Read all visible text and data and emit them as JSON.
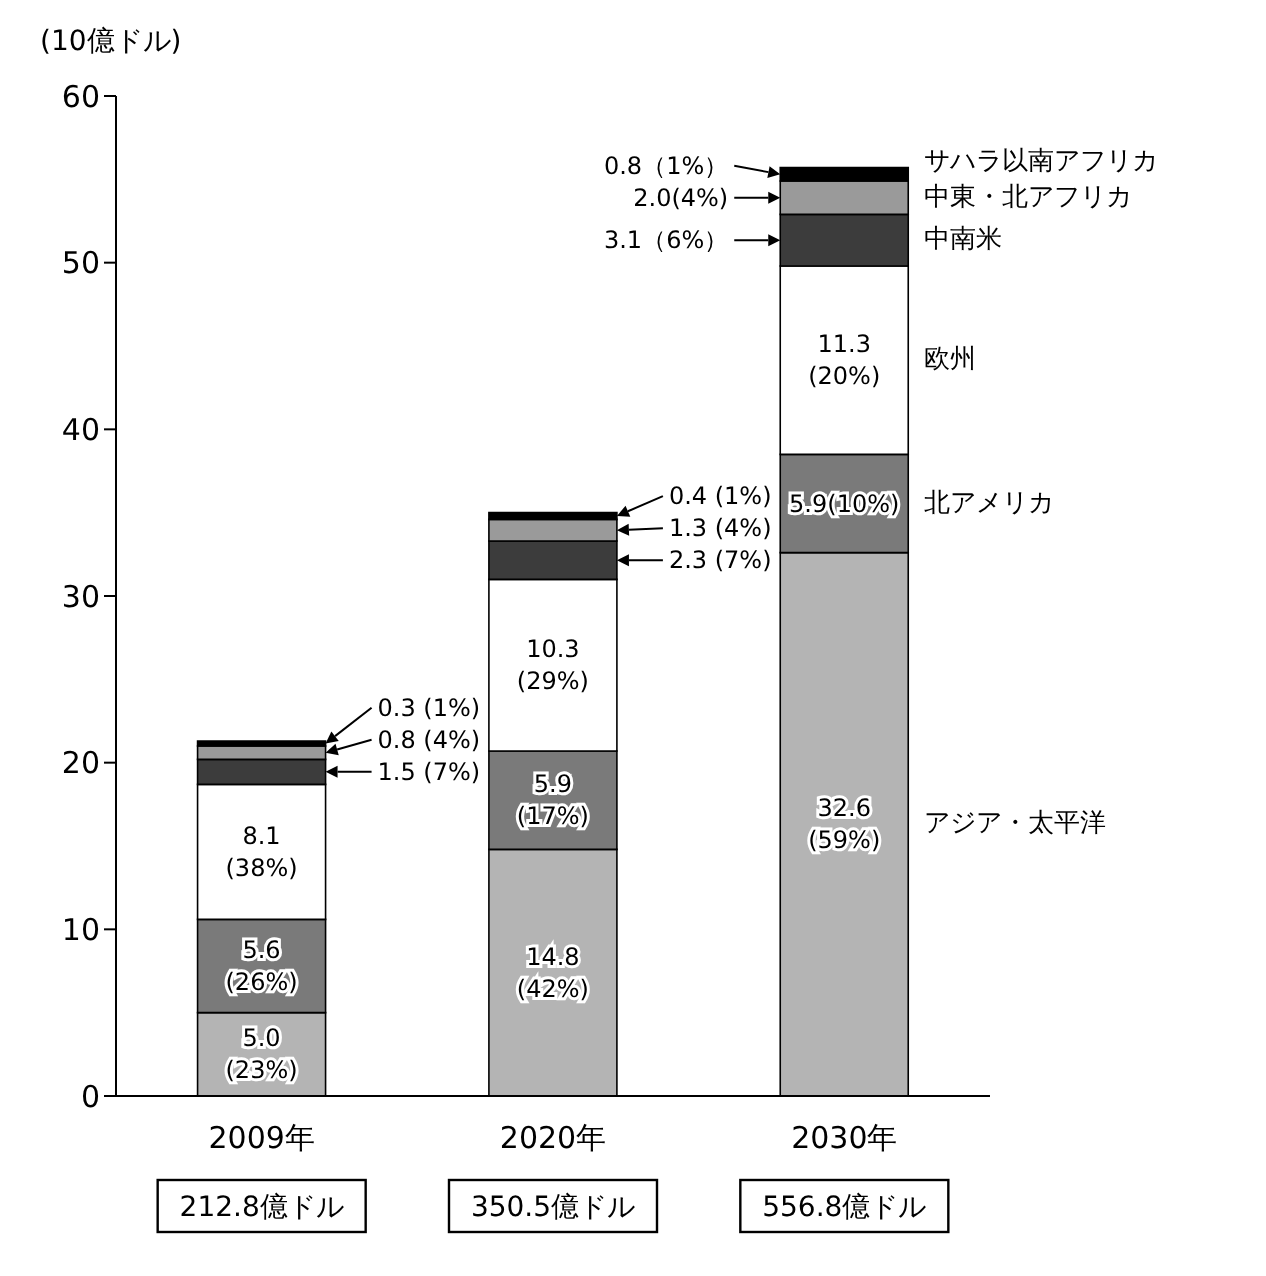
{
  "chart_data": {
    "type": "bar",
    "stacked": true,
    "ylabel": "(10億ドル)",
    "categories": [
      "2009年",
      "2020年",
      "2030年"
    ],
    "ylim": [
      0,
      60
    ],
    "yticks": [
      0,
      10,
      20,
      30,
      40,
      50,
      60
    ],
    "grid": false,
    "legend": false,
    "annotations": [
      "212.8億ドル",
      "350.5億ドル",
      "556.8億ドル"
    ],
    "series": [
      {
        "name": "アジア・太平洋",
        "color": "#b4b4b4",
        "values": [
          5.0,
          14.8,
          32.6
        ],
        "value_labels": [
          "5.0 (23%)",
          "14.8 (42%)",
          "32.6 (59%)"
        ]
      },
      {
        "name": "北アメリカ",
        "color": "#7a7a7a",
        "values": [
          5.6,
          5.9,
          5.9
        ],
        "value_labels": [
          "5.6 (26%)",
          "5.9 (17%)",
          "5.9(10%)"
        ]
      },
      {
        "name": "欧州",
        "color": "#ffffff",
        "values": [
          8.1,
          10.3,
          11.3
        ],
        "value_labels": [
          "8.1 (38%)",
          "10.3 (29%)",
          "11.3 (20%)"
        ]
      },
      {
        "name": "中南米",
        "color": "#3c3c3c",
        "values": [
          1.5,
          2.3,
          3.1
        ],
        "value_labels": [
          "1.5 (7%)",
          "2.3 (7%)",
          "3.1（6%）"
        ]
      },
      {
        "name": "中東・北アフリカ",
        "color": "#9a9a9a",
        "values": [
          0.8,
          1.3,
          2.0
        ],
        "value_labels": [
          "0.8 (4%)",
          "1.3 (4%)",
          "2.0(4%)"
        ]
      },
      {
        "name": "サハラ以南アフリカ",
        "color": "#000000",
        "values": [
          0.3,
          0.4,
          0.8
        ],
        "value_labels": [
          "0.3 (1%)",
          "0.4 (1%)",
          "0.8（1%）"
        ]
      }
    ]
  }
}
